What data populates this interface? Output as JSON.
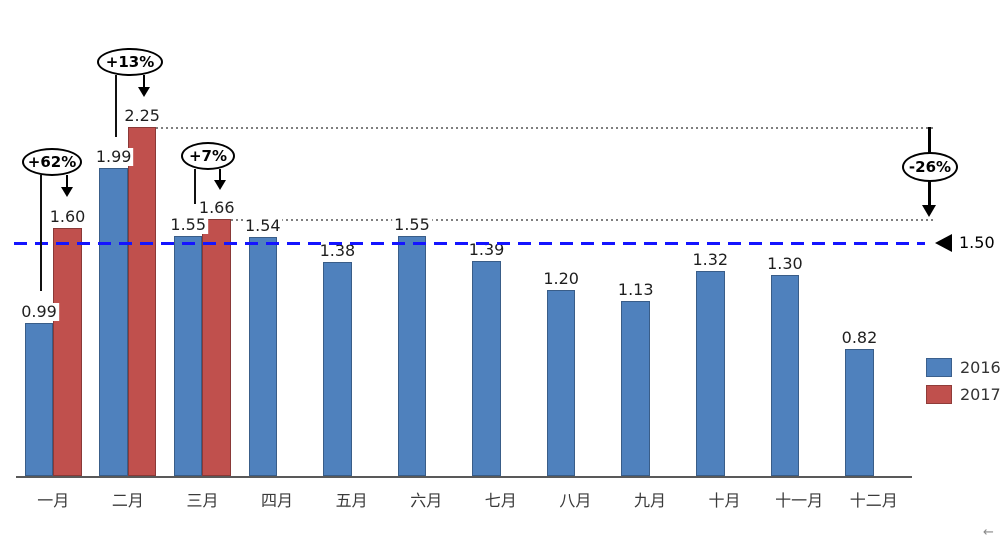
{
  "chart_data": {
    "type": "bar",
    "title": "",
    "categories": [
      "一月",
      "二月",
      "三月",
      "四月",
      "五月",
      "六月",
      "七月",
      "八月",
      "九月",
      "十月",
      "十一月",
      "十二月"
    ],
    "series": [
      {
        "name": "2016",
        "color": "#4F81BD",
        "values": [
          0.99,
          1.99,
          1.55,
          1.54,
          1.38,
          1.55,
          1.39,
          1.2,
          1.13,
          1.32,
          1.3,
          0.82
        ]
      },
      {
        "name": "2017",
        "color": "#C0504D",
        "values": [
          1.6,
          2.25,
          1.66,
          null,
          null,
          null,
          null,
          null,
          null,
          null,
          null,
          null
        ]
      }
    ],
    "ylim": [
      0,
      2.5
    ],
    "grid": false,
    "value_labels": true,
    "legend_position": "right",
    "reference_line": {
      "value": 1.5,
      "label": "1.50",
      "color": "#1414FF",
      "style": "dashed"
    },
    "annotations": [
      {
        "label": "+62%",
        "refers_to": "一月 0.99 → 1.60"
      },
      {
        "label": "+13%",
        "refers_to": "二月 1.99 → 2.25"
      },
      {
        "label": "+7%",
        "refers_to": "三月 1.55 → 1.66"
      },
      {
        "label": "-26%",
        "refers_to": "2.25 → 1.66"
      }
    ],
    "connectors": [
      {
        "style": "dotted",
        "from_bar": {
          "series": "2017",
          "category": "二月"
        }
      },
      {
        "style": "dotted",
        "from_bar": {
          "series": "2017",
          "category": "三月"
        }
      }
    ]
  },
  "misc": {
    "corner_glyph": "←"
  }
}
